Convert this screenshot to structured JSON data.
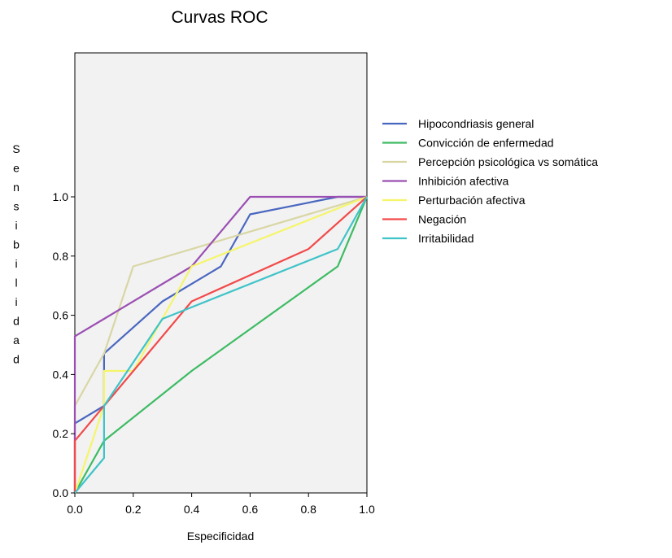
{
  "chart_data": {
    "type": "line",
    "title": "Curvas ROC",
    "xlabel": "Especificidad",
    "ylabel": "Sensibilidad",
    "xlim": [
      0,
      1
    ],
    "ylim": [
      0,
      1
    ],
    "xticks": [
      "0.0",
      "0.2",
      "0.4",
      "0.6",
      "0.8",
      "1.0"
    ],
    "yticks": [
      "0.0",
      "0.2",
      "0.4",
      "0.6",
      "0.8",
      "1.0"
    ],
    "grid": false,
    "legend_position": "right",
    "plot_background": "#f2f2f2",
    "series": [
      {
        "name": "Hipocondriasis general",
        "color": "#4a67c0",
        "points": [
          [
            0,
            0
          ],
          [
            0,
            0.235
          ],
          [
            0.1,
            0.294
          ],
          [
            0.1,
            0.471
          ],
          [
            0.3,
            0.647
          ],
          [
            0.5,
            0.765
          ],
          [
            0.6,
            0.941
          ],
          [
            0.9,
            1.0
          ],
          [
            1.0,
            1.0
          ]
        ]
      },
      {
        "name": "Convicción de enfermedad",
        "color": "#3dbb63",
        "points": [
          [
            0,
            0
          ],
          [
            0.1,
            0.176
          ],
          [
            0.4,
            0.412
          ],
          [
            0.9,
            0.765
          ],
          [
            1.0,
            1.0
          ]
        ]
      },
      {
        "name": "Percepción psicológica vs somática",
        "color": "#d9d6a4",
        "points": [
          [
            0,
            0
          ],
          [
            0,
            0.294
          ],
          [
            0.1,
            0.471
          ],
          [
            0.2,
            0.765
          ],
          [
            1.0,
            1.0
          ]
        ]
      },
      {
        "name": "Inhibición afectiva",
        "color": "#9b4fb3",
        "points": [
          [
            0,
            0
          ],
          [
            0,
            0.529
          ],
          [
            0.1,
            0.588
          ],
          [
            0.4,
            0.765
          ],
          [
            0.6,
            1.0
          ],
          [
            1.0,
            1.0
          ]
        ]
      },
      {
        "name": "Perturbación afectiva",
        "color": "#f5f56a",
        "points": [
          [
            0,
            0
          ],
          [
            0.1,
            0.294
          ],
          [
            0.1,
            0.412
          ],
          [
            0.2,
            0.412
          ],
          [
            0.4,
            0.765
          ],
          [
            1.0,
            1.0
          ]
        ]
      },
      {
        "name": "Negación",
        "color": "#f24a4a",
        "points": [
          [
            0,
            0
          ],
          [
            0,
            0.176
          ],
          [
            0.1,
            0.294
          ],
          [
            0.4,
            0.647
          ],
          [
            0.8,
            0.824
          ],
          [
            1.0,
            1.0
          ]
        ]
      },
      {
        "name": "Irritabilidad",
        "color": "#3fc3c8",
        "points": [
          [
            0,
            0
          ],
          [
            0.1,
            0.118
          ],
          [
            0.1,
            0.294
          ],
          [
            0.3,
            0.588
          ],
          [
            0.9,
            0.824
          ],
          [
            1.0,
            1.0
          ]
        ]
      }
    ]
  }
}
